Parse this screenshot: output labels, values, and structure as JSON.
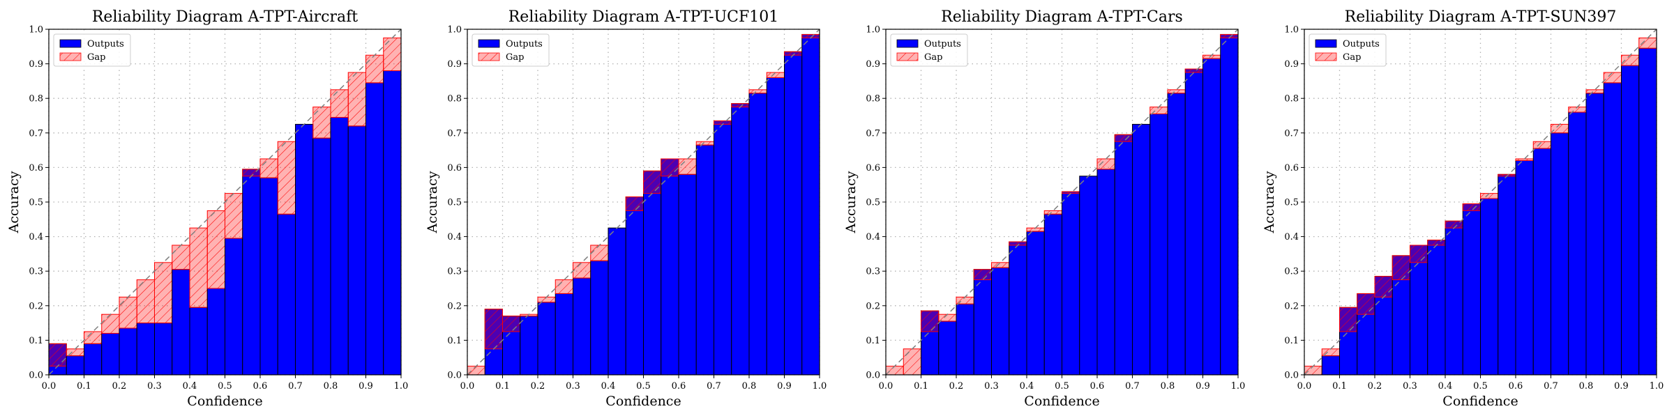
{
  "colors": {
    "outputs": "#0000ff",
    "gap_edge": "#ff0000",
    "gap_fill_alpha": 0.3,
    "diagonal": "#808080",
    "grid": "#b0b0b0"
  },
  "legend": {
    "outputs_label": "Outputs",
    "gap_label": "Gap",
    "placement": "upper-left"
  },
  "chart_data": [
    {
      "type": "bar",
      "title": "Reliability Diagram A-TPT-Aircraft",
      "xlabel": "Confidence",
      "ylabel": "Accuracy",
      "xlim": [
        0,
        1
      ],
      "ylim": [
        0,
        1
      ],
      "grid": true,
      "x_ticks": [
        "0.0",
        "0.1",
        "0.2",
        "0.3",
        "0.4",
        "0.5",
        "0.6",
        "0.7",
        "0.8",
        "0.9",
        "1.0"
      ],
      "y_ticks": [
        "0.0",
        "0.1",
        "0.2",
        "0.3",
        "0.4",
        "0.5",
        "0.6",
        "0.7",
        "0.8",
        "0.9",
        "1.0"
      ],
      "bin_width": 0.05,
      "bin_midpoints": [
        0.025,
        0.075,
        0.125,
        0.175,
        0.225,
        0.275,
        0.325,
        0.375,
        0.425,
        0.475,
        0.525,
        0.575,
        0.625,
        0.675,
        0.725,
        0.775,
        0.825,
        0.875,
        0.925,
        0.975
      ],
      "outputs": [
        0.09,
        0.055,
        0.09,
        0.12,
        0.135,
        0.15,
        0.15,
        0.305,
        0.195,
        0.25,
        0.395,
        0.595,
        0.57,
        0.465,
        0.725,
        0.685,
        0.745,
        0.72,
        0.845,
        0.88
      ]
    },
    {
      "type": "bar",
      "title": "Reliability Diagram A-TPT-UCF101",
      "xlabel": "Confidence",
      "ylabel": "Accuracy",
      "xlim": [
        0,
        1
      ],
      "ylim": [
        0,
        1
      ],
      "grid": true,
      "x_ticks": [
        "0.0",
        "0.1",
        "0.2",
        "0.3",
        "0.4",
        "0.5",
        "0.6",
        "0.7",
        "0.8",
        "0.9",
        "1.0"
      ],
      "y_ticks": [
        "0.0",
        "0.1",
        "0.2",
        "0.3",
        "0.4",
        "0.5",
        "0.6",
        "0.7",
        "0.8",
        "0.9",
        "1.0"
      ],
      "bin_width": 0.05,
      "bin_midpoints": [
        0.025,
        0.075,
        0.125,
        0.175,
        0.225,
        0.275,
        0.325,
        0.375,
        0.425,
        0.475,
        0.525,
        0.575,
        0.625,
        0.675,
        0.725,
        0.775,
        0.825,
        0.875,
        0.925,
        0.975
      ],
      "outputs": [
        0.0,
        0.19,
        0.17,
        0.17,
        0.21,
        0.235,
        0.28,
        0.33,
        0.425,
        0.515,
        0.59,
        0.625,
        0.58,
        0.665,
        0.735,
        0.785,
        0.815,
        0.86,
        0.935,
        0.985
      ]
    },
    {
      "type": "bar",
      "title": "Reliability Diagram A-TPT-Cars",
      "xlabel": "Confidence",
      "ylabel": "Accuracy",
      "xlim": [
        0,
        1
      ],
      "ylim": [
        0,
        1
      ],
      "grid": true,
      "x_ticks": [
        "0.0",
        "0.1",
        "0.2",
        "0.3",
        "0.4",
        "0.5",
        "0.6",
        "0.7",
        "0.8",
        "0.9",
        "1.0"
      ],
      "y_ticks": [
        "0.0",
        "0.1",
        "0.2",
        "0.3",
        "0.4",
        "0.5",
        "0.6",
        "0.7",
        "0.8",
        "0.9",
        "1.0"
      ],
      "bin_width": 0.05,
      "bin_midpoints": [
        0.025,
        0.075,
        0.125,
        0.175,
        0.225,
        0.275,
        0.325,
        0.375,
        0.425,
        0.475,
        0.525,
        0.575,
        0.625,
        0.675,
        0.725,
        0.775,
        0.825,
        0.875,
        0.925,
        0.975
      ],
      "outputs": [
        0.0,
        0.0,
        0.185,
        0.155,
        0.205,
        0.305,
        0.31,
        0.385,
        0.415,
        0.465,
        0.53,
        0.575,
        0.595,
        0.695,
        0.725,
        0.755,
        0.815,
        0.885,
        0.915,
        0.985
      ]
    },
    {
      "type": "bar",
      "title": "Reliability Diagram A-TPT-SUN397",
      "xlabel": "Confidence",
      "ylabel": "Accuracy",
      "xlim": [
        0,
        1
      ],
      "ylim": [
        0,
        1
      ],
      "grid": true,
      "x_ticks": [
        "0.0",
        "0.1",
        "0.2",
        "0.3",
        "0.4",
        "0.5",
        "0.6",
        "0.7",
        "0.8",
        "0.9",
        "1.0"
      ],
      "y_ticks": [
        "0.0",
        "0.1",
        "0.2",
        "0.3",
        "0.4",
        "0.5",
        "0.6",
        "0.7",
        "0.8",
        "0.9",
        "1.0"
      ],
      "bin_width": 0.05,
      "bin_midpoints": [
        0.025,
        0.075,
        0.125,
        0.175,
        0.225,
        0.275,
        0.325,
        0.375,
        0.425,
        0.475,
        0.525,
        0.575,
        0.625,
        0.675,
        0.725,
        0.775,
        0.825,
        0.875,
        0.925,
        0.975
      ],
      "outputs": [
        0.0,
        0.055,
        0.195,
        0.235,
        0.285,
        0.345,
        0.375,
        0.39,
        0.445,
        0.495,
        0.51,
        0.58,
        0.62,
        0.655,
        0.7,
        0.76,
        0.815,
        0.845,
        0.895,
        0.945
      ]
    }
  ]
}
